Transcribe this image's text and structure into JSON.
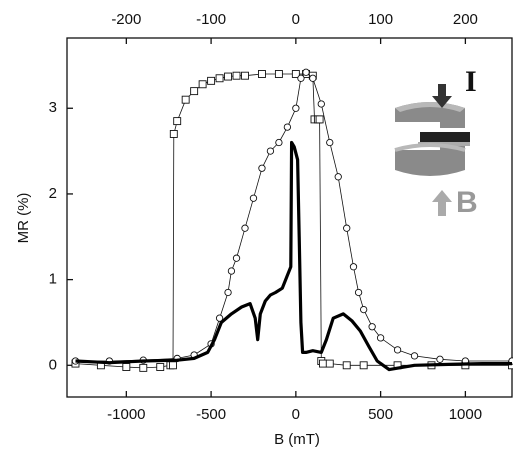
{
  "chart_data": {
    "type": "line",
    "xlabel": "B (mT)",
    "ylabel": "MR (%)",
    "xlim": [
      -1350,
      1275
    ],
    "xticks": [
      -1000,
      -500,
      0,
      500,
      1000
    ],
    "x2lim": [
      -270,
      255
    ],
    "x2ticks": [
      -200,
      -100,
      0,
      100,
      200
    ],
    "ylim": [
      -0.37,
      3.82
    ],
    "yticks": [
      0,
      1,
      2,
      3
    ],
    "annotations": [
      "I",
      "B"
    ],
    "series": [
      {
        "color": "#111111",
        "marker": "square",
        "linewidth": 0.8,
        "x": [
          -1300,
          -1150,
          -1000,
          -900,
          -800,
          -740,
          -725,
          -720,
          -700,
          -650,
          -600,
          -550,
          -500,
          -450,
          -400,
          -350,
          -300,
          -200,
          -100,
          0,
          60,
          100,
          110,
          130,
          140,
          150,
          160,
          200,
          300,
          400,
          600,
          800,
          1000,
          1275
        ],
        "y": [
          0.02,
          0.0,
          -0.02,
          -0.03,
          -0.02,
          0.0,
          0.0,
          2.7,
          2.85,
          3.1,
          3.2,
          3.28,
          3.32,
          3.35,
          3.37,
          3.38,
          3.38,
          3.4,
          3.4,
          3.4,
          3.4,
          3.38,
          2.87,
          2.87,
          2.87,
          0.05,
          0.02,
          0.02,
          0.0,
          0.0,
          0.0,
          0.0,
          0.0,
          0.0
        ]
      },
      {
        "color": "#111111",
        "marker": "circle",
        "linewidth": 0.8,
        "x": [
          -1300,
          -1100,
          -900,
          -700,
          -600,
          -500,
          -450,
          -400,
          -380,
          -350,
          -300,
          -250,
          -200,
          -150,
          -100,
          -50,
          0,
          30,
          60,
          100,
          150,
          200,
          250,
          300,
          340,
          370,
          400,
          450,
          500,
          600,
          700,
          850,
          1000,
          1275
        ],
        "y": [
          0.05,
          0.05,
          0.06,
          0.08,
          0.12,
          0.25,
          0.55,
          0.85,
          1.1,
          1.25,
          1.6,
          1.95,
          2.3,
          2.5,
          2.6,
          2.78,
          3.0,
          3.35,
          3.42,
          3.35,
          3.05,
          2.6,
          2.2,
          1.6,
          1.15,
          0.85,
          0.65,
          0.45,
          0.32,
          0.18,
          0.11,
          0.07,
          0.05,
          0.05
        ]
      },
      {
        "color": "#000000",
        "marker": "none",
        "linewidth": 3.2,
        "x": [
          -1300,
          -1100,
          -900,
          -700,
          -600,
          -520,
          -480,
          -440,
          -380,
          -320,
          -270,
          -240,
          -225,
          -210,
          -180,
          -150,
          -120,
          -80,
          -50,
          -30,
          -25,
          -10,
          10,
          20,
          30,
          40,
          60,
          100,
          150,
          180,
          220,
          280,
          330,
          380,
          430,
          480,
          550,
          700,
          900,
          1100,
          1275
        ],
        "y": [
          0.05,
          0.03,
          0.05,
          0.06,
          0.08,
          0.15,
          0.3,
          0.5,
          0.6,
          0.68,
          0.72,
          0.55,
          0.3,
          0.6,
          0.75,
          0.82,
          0.85,
          0.9,
          1.05,
          1.15,
          2.6,
          2.55,
          2.4,
          1.5,
          0.5,
          0.15,
          0.15,
          0.17,
          0.15,
          0.3,
          0.55,
          0.6,
          0.52,
          0.4,
          0.22,
          0.05,
          -0.05,
          0.0,
          0.01,
          0.02,
          0.02
        ]
      }
    ]
  }
}
